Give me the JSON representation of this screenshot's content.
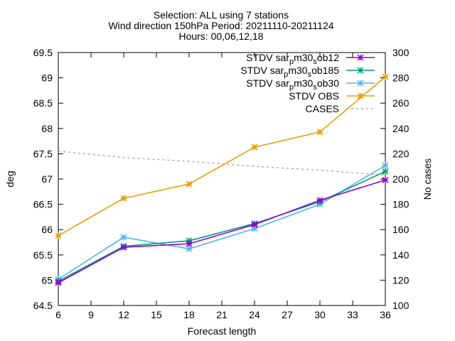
{
  "chart_data": {
    "type": "line",
    "title_lines": [
      "Selection: ALL using      7 stations",
      "Wind direction 150hPa   Period: 20211110-20211124",
      "Hours: 00,06,12,18"
    ],
    "xlabel": "Forecast length",
    "ylabel": "deg",
    "y2label": "No cases",
    "x": [
      6,
      12,
      18,
      24,
      30,
      36
    ],
    "xlim": [
      6,
      36
    ],
    "xticks": [
      6,
      9,
      12,
      15,
      18,
      21,
      24,
      27,
      30,
      33,
      36
    ],
    "ylim": [
      64.5,
      69.5
    ],
    "yticks": [
      64.5,
      65,
      65.5,
      66,
      66.5,
      67,
      67.5,
      68,
      68.5,
      69,
      69.5
    ],
    "y2lim": [
      100,
      300
    ],
    "y2ticks": [
      100,
      120,
      140,
      160,
      180,
      200,
      220,
      240,
      260,
      280,
      300
    ],
    "legend_position": "top-right",
    "grid": false,
    "series": [
      {
        "name": "STDV sar_p m30_s ob12",
        "legend_base": "STDV sar",
        "legend_parts": [
          [
            "p",
            "sub"
          ],
          [
            "m30",
            ""
          ],
          [
            "s",
            "sub"
          ],
          [
            "ob12",
            ""
          ]
        ],
        "axis": "y",
        "color": "#9400d3",
        "marker": "x-star",
        "dashed": false,
        "values": [
          64.95,
          65.65,
          65.72,
          66.1,
          66.58,
          66.98
        ]
      },
      {
        "name": "STDV sar_p m30_s ob185",
        "legend_base": "STDV sar",
        "legend_parts": [
          [
            "p",
            "sub"
          ],
          [
            "m30",
            ""
          ],
          [
            "s",
            "sub"
          ],
          [
            "ob185",
            ""
          ]
        ],
        "axis": "y",
        "color": "#009e73",
        "marker": "x-star",
        "dashed": false,
        "values": [
          64.98,
          65.67,
          65.78,
          66.12,
          66.55,
          67.15
        ]
      },
      {
        "name": "STDV sar_p m30_s ob30",
        "legend_base": "STDV sar",
        "legend_parts": [
          [
            "p",
            "sub"
          ],
          [
            "m30",
            ""
          ],
          [
            "s",
            "sub"
          ],
          [
            "ob30",
            ""
          ]
        ],
        "axis": "y",
        "color": "#56b4e9",
        "marker": "x-star",
        "dashed": false,
        "values": [
          65.02,
          65.85,
          65.62,
          66.02,
          66.5,
          67.27
        ]
      },
      {
        "name": "STDV OBS",
        "legend_base": "STDV OBS",
        "legend_parts": [],
        "axis": "y",
        "color": "#e69f00",
        "marker": "x-star",
        "dashed": false,
        "values": [
          65.88,
          66.62,
          66.9,
          67.63,
          67.93,
          69.02
        ]
      },
      {
        "name": "CASES",
        "legend_base": "CASES",
        "legend_parts": [],
        "axis": "y2",
        "color": "#999999",
        "marker": "none",
        "dashed": true,
        "values": [
          222,
          217,
          214,
          210,
          207,
          203
        ]
      }
    ]
  }
}
